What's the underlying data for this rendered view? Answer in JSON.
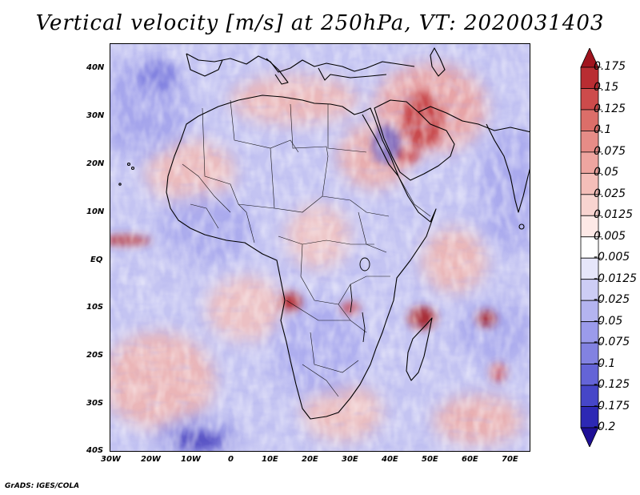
{
  "title": "Vertical velocity [m/s] at 250hPa, VT: 2020031403",
  "credit": "GrADS: IGES/COLA",
  "map": {
    "variable": "Vertical velocity",
    "units": "m/s",
    "level": "250hPa",
    "valid_time": "2020031403",
    "lon_range": [
      -30,
      75
    ],
    "lat_range": [
      -40,
      45
    ],
    "lat_ticks": [
      {
        "value": 40,
        "label": "40N"
      },
      {
        "value": 30,
        "label": "30N"
      },
      {
        "value": 20,
        "label": "20N"
      },
      {
        "value": 10,
        "label": "10N"
      },
      {
        "value": 0,
        "label": "EQ"
      },
      {
        "value": -10,
        "label": "10S"
      },
      {
        "value": -20,
        "label": "20S"
      },
      {
        "value": -30,
        "label": "30S"
      },
      {
        "value": -40,
        "label": "40S"
      }
    ],
    "lon_ticks": [
      {
        "value": -30,
        "label": "30W"
      },
      {
        "value": -20,
        "label": "20W"
      },
      {
        "value": -10,
        "label": "10W"
      },
      {
        "value": 0,
        "label": "0"
      },
      {
        "value": 10,
        "label": "10E"
      },
      {
        "value": 20,
        "label": "20E"
      },
      {
        "value": 30,
        "label": "30E"
      },
      {
        "value": 40,
        "label": "40E"
      },
      {
        "value": 50,
        "label": "50E"
      },
      {
        "value": 60,
        "label": "60E"
      },
      {
        "value": 70,
        "label": "70E"
      }
    ]
  },
  "colorbar": {
    "levels": [
      {
        "label": "0.175",
        "color": "#a0141e"
      },
      {
        "label": "0.15",
        "color": "#b92d32"
      },
      {
        "label": "0.125",
        "color": "#cd4b4b"
      },
      {
        "label": "0.1",
        "color": "#dc6e69"
      },
      {
        "label": "0.075",
        "color": "#e68c87"
      },
      {
        "label": "0.05",
        "color": "#eea5a0"
      },
      {
        "label": "0.025",
        "color": "#f4beb9"
      },
      {
        "label": "0.0125",
        "color": "#f8d4d0"
      },
      {
        "label": "0.005",
        "color": "#fde9e6"
      },
      {
        "label": "-0.005",
        "color": "#ffffff"
      },
      {
        "label": "-0.0125",
        "color": "#e6e6fa"
      },
      {
        "label": "-0.025",
        "color": "#cdcdf5"
      },
      {
        "label": "-0.05",
        "color": "#b4b4f0"
      },
      {
        "label": "-0.075",
        "color": "#9b9beb"
      },
      {
        "label": "-0.1",
        "color": "#8282e1"
      },
      {
        "label": "-0.125",
        "color": "#6464d7"
      },
      {
        "label": "-0.175",
        "color": "#4646c8"
      },
      {
        "label": "-0.2",
        "color": "#2d28b4"
      },
      {
        "label": "",
        "color": "#1e0f96"
      }
    ]
  }
}
